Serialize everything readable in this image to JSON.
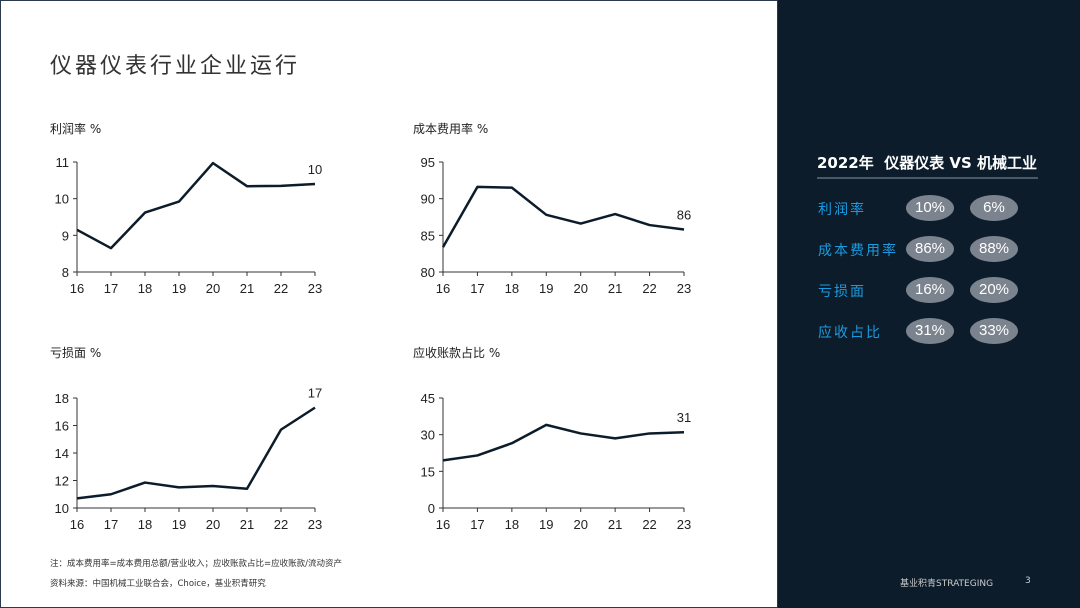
{
  "title": "仪器仪表行业企业运行",
  "chart_data": [
    {
      "type": "line",
      "title": "利润率 %",
      "categories": [
        "16",
        "17",
        "18",
        "19",
        "20",
        "21",
        "22",
        "23"
      ],
      "values": [
        9.15,
        8.65,
        9.62,
        9.92,
        10.97,
        10.34,
        10.35,
        10.4
      ],
      "ylim": [
        8,
        11
      ],
      "yticks": [
        8,
        9,
        10,
        11
      ],
      "end_label": "10"
    },
    {
      "type": "line",
      "title": "成本费用率 %",
      "categories": [
        "16",
        "17",
        "18",
        "19",
        "20",
        "21",
        "22",
        "23"
      ],
      "values": [
        83.4,
        91.6,
        91.5,
        87.8,
        86.6,
        87.9,
        86.4,
        85.8
      ],
      "ylim": [
        80,
        95
      ],
      "yticks": [
        80,
        85,
        90,
        95
      ],
      "end_label": "86"
    },
    {
      "type": "line",
      "title": "亏损面 %",
      "categories": [
        "16",
        "17",
        "18",
        "19",
        "20",
        "21",
        "22",
        "23"
      ],
      "values": [
        10.7,
        11.0,
        11.85,
        11.5,
        11.6,
        11.4,
        15.7,
        17.3
      ],
      "ylim": [
        10,
        18
      ],
      "yticks": [
        10,
        12,
        14,
        16,
        18
      ],
      "end_label": "17"
    },
    {
      "type": "line",
      "title": "应收账款占比 %",
      "categories": [
        "16",
        "17",
        "18",
        "19",
        "20",
        "21",
        "22",
        "23"
      ],
      "values": [
        19.5,
        21.5,
        26.5,
        34,
        30.5,
        28.5,
        30.5,
        31
      ],
      "ylim": [
        0,
        45
      ],
      "yticks": [
        0,
        15,
        30,
        45
      ],
      "end_label": "31"
    }
  ],
  "notes": {
    "note": "注：成本费用率=成本费用总额/营业收入；应收账款占比=应收账款/流动资产",
    "source": "资料来源：中国机械工业联合会，Choice，基业积青研究"
  },
  "panel": {
    "title": "2022年  仪器仪表 VS 机械工业",
    "rows": [
      {
        "label": "利润率",
        "a": "10%",
        "b": "6%"
      },
      {
        "label": "成本费用率",
        "a": "86%",
        "b": "88%"
      },
      {
        "label": "亏损面",
        "a": "16%",
        "b": "20%"
      },
      {
        "label": "应收占比",
        "a": "31%",
        "b": "33%"
      }
    ]
  },
  "footer": {
    "brand": "基业积青STRATEGING",
    "page": "3"
  },
  "colors": {
    "line": "#0c1c2b",
    "accent": "#1a9be0",
    "panel": "#0c1c2b",
    "pill": "#7a838e"
  }
}
